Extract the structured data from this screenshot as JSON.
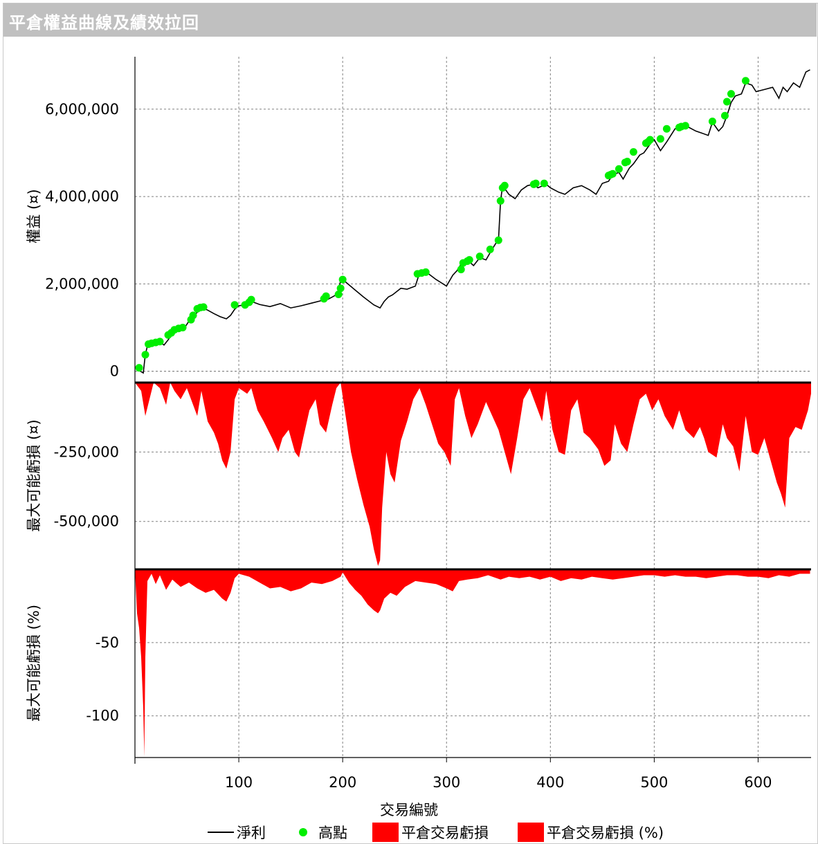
{
  "window": {
    "title": "平倉權益曲線及績效拉回"
  },
  "colors": {
    "line": "#000000",
    "highs": "#00ee00",
    "drawdown": "#ff0000",
    "grid": "#808080"
  },
  "chart_data": [
    {
      "type": "line",
      "panel": "equity",
      "ylabel": "權益 (¤)",
      "ylim": [
        -100000,
        7200000
      ],
      "yticks": [
        0,
        2000000,
        4000000,
        6000000
      ],
      "ytick_labels": [
        "0",
        "2,000,000",
        "4,000,000",
        "6,000,000"
      ],
      "series": [
        {
          "name": "淨利",
          "x": [
            0,
            4,
            8,
            10,
            12,
            16,
            20,
            24,
            28,
            32,
            36,
            40,
            44,
            48,
            52,
            56,
            60,
            64,
            70,
            76,
            82,
            88,
            92,
            96,
            100,
            106,
            112,
            120,
            130,
            140,
            150,
            160,
            170,
            180,
            186,
            190,
            196,
            198,
            200,
            210,
            220,
            230,
            236,
            240,
            244,
            248,
            256,
            262,
            270,
            274,
            280,
            290,
            300,
            306,
            310,
            314,
            320,
            326,
            332,
            338,
            344,
            348,
            350,
            352,
            354,
            360,
            366,
            372,
            378,
            384,
            388,
            396,
            400,
            408,
            414,
            422,
            430,
            438,
            444,
            450,
            456,
            460,
            466,
            470,
            476,
            480,
            486,
            490,
            496,
            500,
            506,
            512,
            520,
            526,
            532,
            540,
            546,
            552,
            556,
            562,
            566,
            570,
            574,
            578,
            584,
            588,
            594,
            598,
            606,
            614,
            620,
            624,
            628,
            634,
            640,
            646,
            650
          ],
          "y": [
            100000,
            20000,
            -40000,
            380000,
            580000,
            620000,
            640000,
            670000,
            600000,
            720000,
            860000,
            960000,
            980000,
            1000000,
            1150000,
            1250000,
            1350000,
            1460000,
            1400000,
            1320000,
            1250000,
            1200000,
            1280000,
            1420000,
            1500000,
            1520000,
            1600000,
            1530000,
            1480000,
            1550000,
            1450000,
            1500000,
            1560000,
            1620000,
            1650000,
            1700000,
            1780000,
            2100000,
            2100000,
            1900000,
            1700000,
            1520000,
            1450000,
            1600000,
            1700000,
            1750000,
            1900000,
            1880000,
            1950000,
            2250000,
            2280000,
            2100000,
            1950000,
            2200000,
            2300000,
            2450000,
            2550000,
            2420000,
            2600000,
            2550000,
            2800000,
            2950000,
            3000000,
            3900000,
            4250000,
            4050000,
            3950000,
            4150000,
            4250000,
            4280000,
            4200000,
            4280000,
            4200000,
            4100000,
            4050000,
            4200000,
            4250000,
            4150000,
            4050000,
            4300000,
            4350000,
            4500000,
            4550000,
            4400000,
            4650000,
            4750000,
            4950000,
            5000000,
            5200000,
            5300000,
            5050000,
            5250000,
            5550000,
            5550000,
            5600000,
            5500000,
            5450000,
            5400000,
            5700000,
            5500000,
            5600000,
            5850000,
            6150000,
            6300000,
            6350000,
            6600000,
            6550000,
            6400000,
            6450000,
            6500000,
            6250000,
            6500000,
            6400000,
            6600000,
            6500000,
            6850000,
            6900000
          ]
        },
        {
          "name": "高點",
          "x": [
            4,
            10,
            13,
            16,
            20,
            24,
            32,
            35,
            38,
            42,
            46,
            54,
            56,
            60,
            63,
            66,
            96,
            106,
            110,
            112,
            182,
            184,
            196,
            198,
            200,
            272,
            276,
            280,
            314,
            316,
            320,
            322,
            332,
            342,
            350,
            352,
            354,
            356,
            384,
            386,
            394,
            456,
            458,
            460,
            466,
            472,
            474,
            480,
            492,
            494,
            496,
            506,
            512,
            524,
            526,
            530,
            556,
            568,
            570,
            574,
            588
          ],
          "y": [
            80000,
            380000,
            620000,
            640000,
            660000,
            680000,
            830000,
            880000,
            950000,
            980000,
            1000000,
            1180000,
            1280000,
            1430000,
            1460000,
            1470000,
            1520000,
            1520000,
            1580000,
            1640000,
            1660000,
            1720000,
            1760000,
            1900000,
            2100000,
            2230000,
            2250000,
            2270000,
            2330000,
            2480000,
            2520000,
            2550000,
            2630000,
            2790000,
            3000000,
            3900000,
            4200000,
            4250000,
            4280000,
            4300000,
            4300000,
            4480000,
            4500000,
            4520000,
            4630000,
            4780000,
            4800000,
            5020000,
            5220000,
            5250000,
            5300000,
            5320000,
            5550000,
            5580000,
            5600000,
            5620000,
            5720000,
            5850000,
            6170000,
            6350000,
            6650000
          ]
        }
      ]
    },
    {
      "type": "area",
      "panel": "drawdown",
      "ylabel": "最大可能虧損 (¤)",
      "ylim": [
        -670000,
        0
      ],
      "yticks": [
        -250000,
        -500000
      ],
      "ytick_labels": [
        "-250,000",
        "-500,000"
      ],
      "series": [
        {
          "name": "平倉交易虧損",
          "x": [
            0,
            6,
            10,
            14,
            18,
            24,
            30,
            34,
            38,
            44,
            50,
            56,
            60,
            64,
            70,
            76,
            80,
            84,
            88,
            92,
            96,
            100,
            104,
            108,
            112,
            118,
            124,
            132,
            138,
            142,
            148,
            154,
            158,
            162,
            168,
            174,
            178,
            184,
            190,
            194,
            198,
            202,
            208,
            214,
            220,
            226,
            230,
            234,
            236,
            238,
            242,
            246,
            250,
            256,
            262,
            268,
            274,
            280,
            286,
            292,
            298,
            304,
            308,
            312,
            318,
            324,
            330,
            338,
            344,
            350,
            356,
            362,
            368,
            374,
            380,
            386,
            392,
            396,
            402,
            408,
            414,
            420,
            426,
            432,
            438,
            446,
            452,
            458,
            462,
            468,
            474,
            480,
            486,
            492,
            498,
            504,
            510,
            518,
            524,
            530,
            538,
            544,
            548,
            552,
            560,
            566,
            570,
            576,
            582,
            588,
            594,
            600,
            606,
            612,
            618,
            622,
            626,
            630,
            636,
            642,
            648,
            651
          ],
          "y": [
            0,
            -30000,
            -120000,
            -60000,
            0,
            -20000,
            -80000,
            0,
            -30000,
            -60000,
            -20000,
            -80000,
            -120000,
            -30000,
            -140000,
            -180000,
            -220000,
            -280000,
            -310000,
            -250000,
            -60000,
            -20000,
            -30000,
            -40000,
            -20000,
            -100000,
            -140000,
            -200000,
            -250000,
            -200000,
            -170000,
            -250000,
            -270000,
            -200000,
            -100000,
            -60000,
            -150000,
            -180000,
            -80000,
            -20000,
            0,
            -100000,
            -250000,
            -350000,
            -440000,
            -520000,
            -600000,
            -660000,
            -640000,
            -450000,
            -250000,
            -330000,
            -360000,
            -210000,
            -140000,
            -60000,
            -20000,
            -80000,
            -150000,
            -220000,
            -250000,
            -300000,
            -60000,
            -20000,
            -120000,
            -200000,
            -150000,
            -70000,
            -120000,
            -170000,
            -250000,
            -330000,
            -200000,
            -60000,
            -20000,
            -80000,
            -140000,
            -30000,
            -170000,
            -250000,
            -260000,
            -100000,
            -60000,
            -180000,
            -200000,
            -240000,
            -300000,
            -280000,
            -150000,
            -220000,
            -250000,
            -150000,
            -60000,
            -40000,
            -100000,
            -60000,
            -120000,
            -170000,
            -100000,
            -170000,
            -200000,
            -160000,
            -200000,
            -250000,
            -270000,
            -150000,
            -200000,
            -230000,
            -320000,
            -120000,
            -250000,
            -260000,
            -200000,
            -280000,
            -360000,
            -400000,
            -450000,
            -200000,
            -160000,
            -170000,
            -100000,
            -40000
          ]
        }
      ]
    },
    {
      "type": "area",
      "panel": "drawdown_pct",
      "ylabel": "最大可能虧損 (%)",
      "ylim": [
        -128,
        0
      ],
      "yticks": [
        -50,
        -100
      ],
      "ytick_labels": [
        "-50",
        "-100"
      ],
      "series": [
        {
          "name": "平倉交易虧損 (%)",
          "x": [
            0,
            2,
            4,
            6,
            8,
            9,
            10,
            12,
            16,
            20,
            24,
            30,
            36,
            44,
            52,
            60,
            68,
            76,
            84,
            88,
            92,
            96,
            100,
            110,
            120,
            130,
            140,
            150,
            160,
            170,
            180,
            190,
            198,
            200,
            206,
            212,
            218,
            224,
            230,
            234,
            236,
            240,
            246,
            252,
            260,
            270,
            280,
            290,
            300,
            306,
            312,
            320,
            330,
            340,
            352,
            360,
            370,
            380,
            390,
            400,
            410,
            420,
            430,
            440,
            450,
            460,
            470,
            480,
            490,
            500,
            510,
            520,
            530,
            540,
            550,
            560,
            570,
            580,
            590,
            600,
            610,
            620,
            630,
            640,
            650
          ],
          "y": [
            0,
            -30,
            -40,
            -60,
            -95,
            -128,
            -60,
            -8,
            -3,
            -10,
            -4,
            -14,
            -7,
            -12,
            -9,
            -13,
            -16,
            -14,
            -20,
            -22,
            -16,
            -6,
            -3,
            -5,
            -9,
            -13,
            -12,
            -15,
            -13,
            -9,
            -10,
            -8,
            -5,
            -2,
            -9,
            -14,
            -18,
            -24,
            -28,
            -30,
            -28,
            -20,
            -16,
            -18,
            -12,
            -8,
            -9,
            -10,
            -13,
            -15,
            -8,
            -7,
            -6,
            -4,
            -7,
            -5,
            -6,
            -5,
            -7,
            -5,
            -8,
            -6,
            -7,
            -5,
            -6,
            -7,
            -6,
            -5,
            -4,
            -4,
            -5,
            -4,
            -5,
            -5,
            -6,
            -5,
            -4,
            -4,
            -5,
            -5,
            -6,
            -4,
            -5,
            -3,
            -3
          ]
        }
      ]
    }
  ],
  "x_axis": {
    "label": "交易編號",
    "xlim": [
      0,
      651
    ],
    "ticks": [
      100,
      200,
      300,
      400,
      500,
      600
    ],
    "tick_labels": [
      "100",
      "200",
      "300",
      "400",
      "500",
      "600"
    ]
  },
  "legend": {
    "net_profit": "淨利",
    "highs": "高點",
    "closed_loss": "平倉交易虧損",
    "closed_loss_pct": "平倉交易虧損 (%)"
  }
}
